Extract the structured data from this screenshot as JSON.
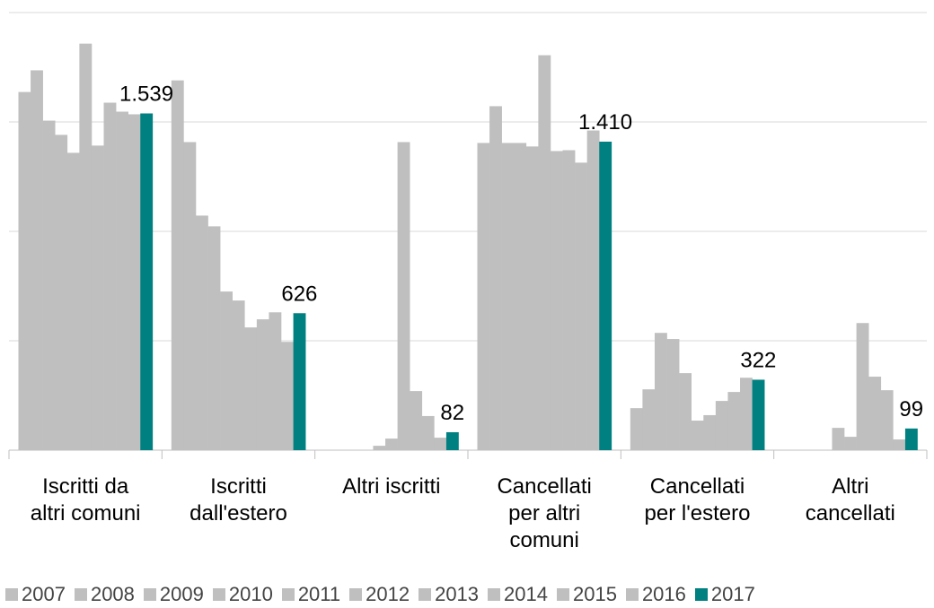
{
  "chart_data": {
    "type": "bar",
    "categories": [
      "Iscritti da altri comuni",
      "Iscritti dall'estero",
      "Altri iscritti",
      "Cancellati per altri comuni",
      "Cancellati per l'estero",
      "Altri cancellati"
    ],
    "series": [
      {
        "name": "2007",
        "color": "#bfbfbf",
        "values": [
          1637,
          1690,
          0,
          1404,
          192,
          0
        ]
      },
      {
        "name": "2008",
        "color": "#bfbfbf",
        "values": [
          1736,
          1408,
          0,
          1572,
          278,
          0
        ]
      },
      {
        "name": "2009",
        "color": "#bfbfbf",
        "values": [
          1506,
          1072,
          0,
          1404,
          536,
          0
        ]
      },
      {
        "name": "2010",
        "color": "#bfbfbf",
        "values": [
          1441,
          1023,
          0,
          1404,
          508,
          0
        ]
      },
      {
        "name": "2011",
        "color": "#bfbfbf",
        "values": [
          1359,
          725,
          20,
          1388,
          352,
          102
        ]
      },
      {
        "name": "2012",
        "color": "#bfbfbf",
        "values": [
          1858,
          684,
          53,
          1805,
          135,
          61
        ]
      },
      {
        "name": "2013",
        "color": "#bfbfbf",
        "values": [
          1392,
          561,
          1408,
          1367,
          160,
          581
        ]
      },
      {
        "name": "2014",
        "color": "#bfbfbf",
        "values": [
          1588,
          598,
          270,
          1371,
          225,
          336
        ]
      },
      {
        "name": "2015",
        "color": "#bfbfbf",
        "values": [
          1547,
          630,
          156,
          1314,
          266,
          274
        ]
      },
      {
        "name": "2016",
        "color": "#bfbfbf",
        "values": [
          1535,
          495,
          57,
          1461,
          331,
          49
        ]
      },
      {
        "name": "2017",
        "color": "#008080",
        "values": [
          1539,
          626,
          82,
          1410,
          322,
          99
        ],
        "value_labels": [
          "1.539",
          "626",
          "82",
          "1.410",
          "322",
          "99"
        ]
      }
    ],
    "ylim": [
      0,
      2000
    ],
    "yticks": [
      0,
      500,
      1000,
      1500,
      2000
    ],
    "grid": true,
    "legend": "bottom"
  }
}
